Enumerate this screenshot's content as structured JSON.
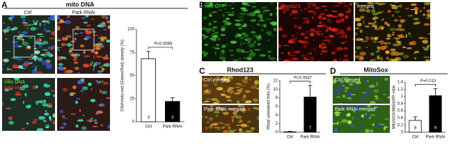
{
  "panels": {
    "A": {
      "label": "A",
      "title": "mito DNA",
      "col1": "Ctrl",
      "col2": "Park RNAi",
      "stain1": "mito DNA",
      "stain2": "mito-red"
    },
    "B": {
      "label": "B",
      "img1": "mito-GFP",
      "img2": "Rhod123",
      "img3": "merged"
    },
    "C": {
      "label": "C",
      "title": "Rhod123",
      "img1": "Ctrl merged",
      "img2": "Park RNAi merged"
    },
    "D": {
      "label": "D",
      "title": "MitoSox",
      "img1": "Ctrl merged",
      "img2": "Park RNAi merged"
    }
  },
  "chart_data": [
    {
      "type": "bar",
      "y_label": "DNA/mito-red (Green/Red) density (%)",
      "categories": [
        "Ctrl",
        "Park RNAi"
      ],
      "values": [
        68,
        22
      ],
      "errors": [
        8,
        4
      ],
      "colors": [
        "#ffffff",
        "#000000"
      ],
      "n_labels": [
        "3",
        "3"
      ],
      "annotation": "P=0.0068",
      "ylim": [
        0,
        100
      ],
      "yticks": [
        0,
        25,
        50,
        75,
        100
      ]
    },
    {
      "type": "bar",
      "y_label": "Rhod unstained mito (%)",
      "categories": [
        "Ctrl",
        "Park RNAi"
      ],
      "values": [
        0.1,
        8.2
      ],
      "errors": [
        0.1,
        2.7
      ],
      "colors": [
        "#ffffff",
        "#000000"
      ],
      "n_labels": [
        null,
        "7"
      ],
      "annotation": "P=0.0047",
      "ylim": [
        0,
        12
      ],
      "yticks": [
        0,
        2,
        4,
        6,
        8,
        10,
        12
      ]
    },
    {
      "type": "bar",
      "y_label": "MitoSOX/MitoGFP ratio",
      "categories": [
        "Ctrl",
        "Park RNAi"
      ],
      "values": [
        0.33,
        1.02
      ],
      "errors": [
        0.1,
        0.2
      ],
      "colors": [
        "#ffffff",
        "#000000"
      ],
      "n_labels": [
        "8",
        "9"
      ],
      "annotation": "P=0.013",
      "ylim": [
        0,
        1.4
      ],
      "yticks": [
        0,
        0.2,
        0.4,
        0.6,
        0.8,
        1,
        1.2,
        1.4
      ]
    }
  ]
}
